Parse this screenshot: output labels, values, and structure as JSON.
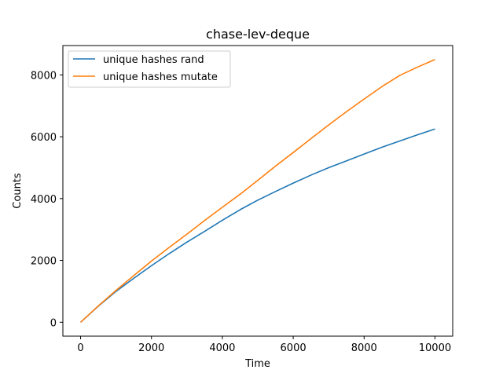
{
  "chart_data": {
    "type": "line",
    "title": "chase-lev-deque",
    "xlabel": "Time",
    "ylabel": "Counts",
    "xlim": [
      -500,
      10500
    ],
    "ylim": [
      -450,
      8950
    ],
    "xticks": [
      0,
      2000,
      4000,
      6000,
      8000,
      10000
    ],
    "yticks": [
      0,
      2000,
      4000,
      6000,
      8000
    ],
    "grid": false,
    "legend": "top-left",
    "series": [
      {
        "name": "unique hashes rand",
        "color": "#1f77b4",
        "x": [
          0,
          500,
          1000,
          1500,
          2000,
          2500,
          3000,
          3500,
          4000,
          4500,
          5000,
          5500,
          6000,
          6500,
          7000,
          7500,
          8000,
          8500,
          9000,
          9500,
          10000
        ],
        "y": [
          0,
          520,
          1000,
          1420,
          1830,
          2220,
          2590,
          2940,
          3300,
          3640,
          3950,
          4230,
          4500,
          4760,
          5000,
          5220,
          5440,
          5660,
          5860,
          6060,
          6250
        ]
      },
      {
        "name": "unique hashes mutate",
        "color": "#ff7f0e",
        "x": [
          0,
          500,
          1000,
          1500,
          2000,
          2500,
          3000,
          3500,
          4000,
          4500,
          5000,
          5500,
          6000,
          6500,
          7000,
          7500,
          8000,
          8500,
          9000,
          9500,
          10000
        ],
        "y": [
          0,
          530,
          1030,
          1510,
          1980,
          2420,
          2850,
          3290,
          3720,
          4140,
          4590,
          5050,
          5490,
          5940,
          6380,
          6810,
          7220,
          7620,
          7980,
          8250,
          8500
        ]
      }
    ]
  }
}
